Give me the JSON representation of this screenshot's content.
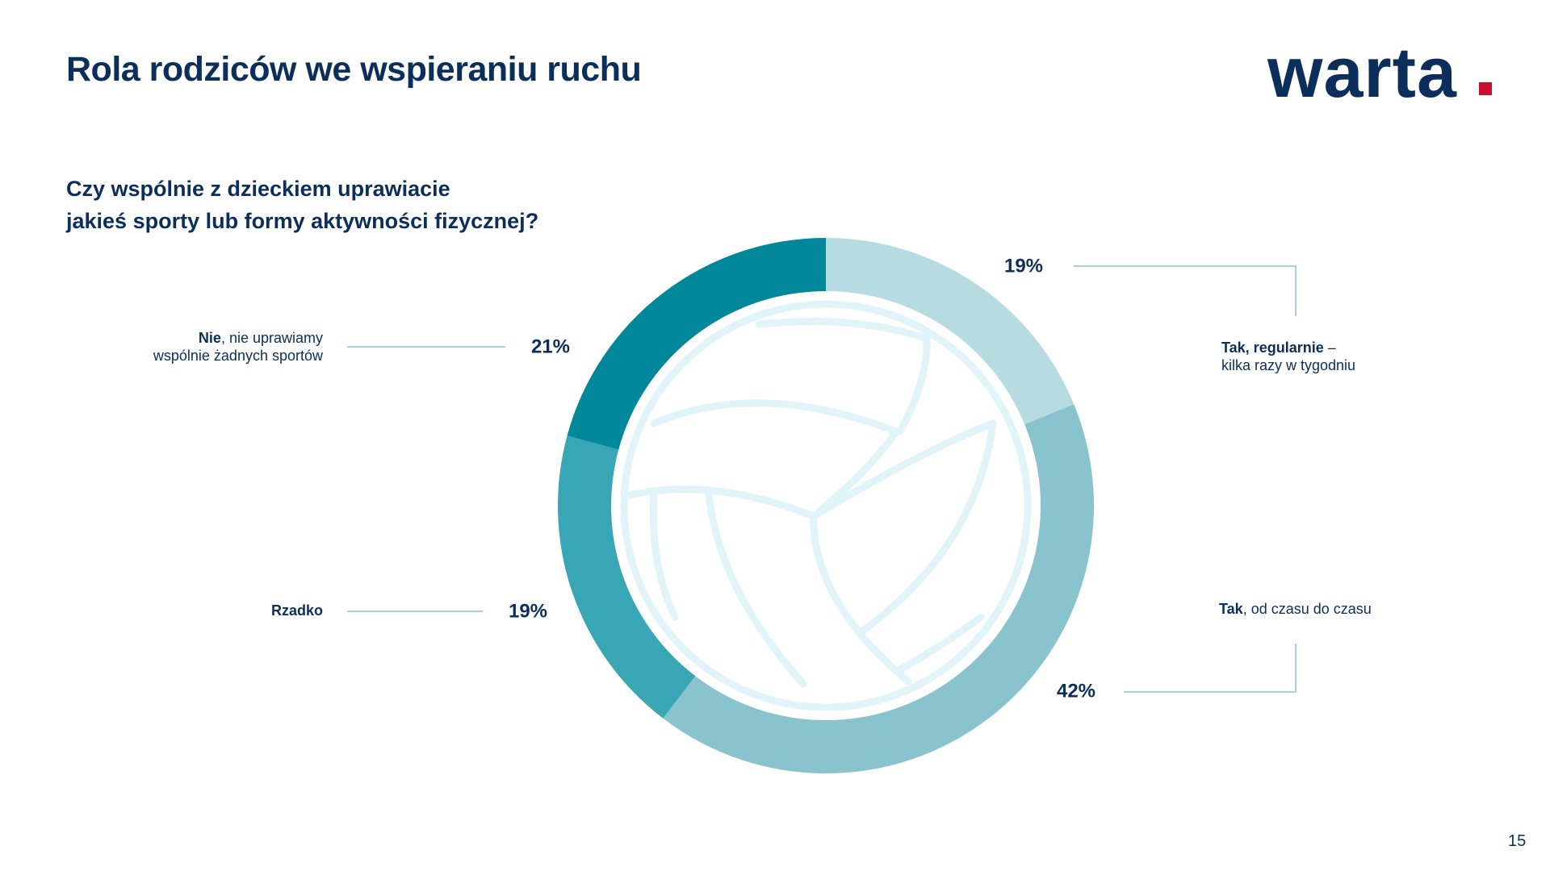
{
  "page": {
    "title": "Rola rodziców we wspieraniu ruchu",
    "logo_text": "warta",
    "page_number": "15"
  },
  "question": {
    "line1": "Czy wspólnie z dzieckiem uprawiacie",
    "line2": "jakieś sporty lub formy aktywności fizycznej?"
  },
  "labels": {
    "tak_regularnie_bold": "Tak, regularnie",
    "tak_regularnie_rest": " –",
    "tak_regularnie_line2": "kilka razy w tygodniu",
    "tak_czasem_bold": "Tak",
    "tak_czasem_rest": ", od czasu do czasu",
    "nie_bold": "Nie",
    "nie_rest": ", nie uprawiamy",
    "nie_line2": "wspólnie żadnych sportów",
    "rzadko": "Rzadko"
  },
  "colors": {
    "brand_navy": "#0b2e5b",
    "brand_red": "#c8102e",
    "ball_lines": "#e0f4f9",
    "leader_lines": "#a9d3dc"
  },
  "chart_data": {
    "type": "pie",
    "donut": true,
    "categories": [
      "Tak, regularnie – kilka razy w tygodniu",
      "Tak, od czasu do czasu",
      "Rzadko",
      "Nie, nie uprawiamy wspólnie żadnych sportów"
    ],
    "values": [
      19,
      42,
      19,
      21
    ],
    "value_labels": [
      "19%",
      "42%",
      "19%",
      "21%"
    ],
    "colors": [
      "#b6dce2",
      "#89c4ce",
      "#38a6b4",
      "#00879a"
    ],
    "title": "Czy wspólnie z dzieckiem uprawiacie jakieś sporty lub formy aktywności fizycznej?",
    "center_decoration": "volleyball-icon"
  }
}
